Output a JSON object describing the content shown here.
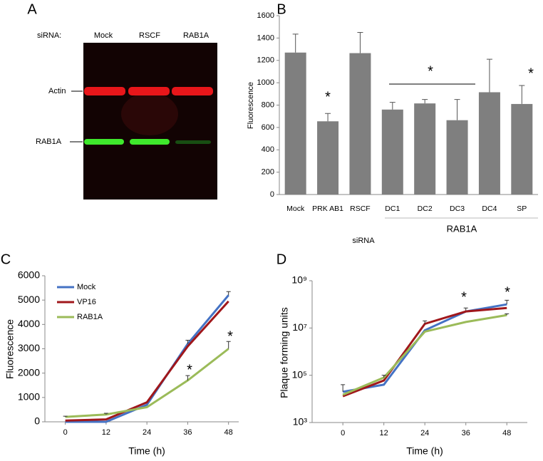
{
  "blot": {
    "panel": "A",
    "header": "siRNA:",
    "lanes": [
      "Mock",
      "RSCF",
      "RAB1A"
    ],
    "bands": [
      "Actin",
      "RAB1A"
    ]
  },
  "chart_data": [
    {
      "type": "bar",
      "panel": "B",
      "ylabel": "Fluorescence",
      "xlabel": "siRNA",
      "group_label": "RAB1A",
      "categories": [
        "Mock",
        "PRK AB1",
        "RSCF",
        "DC1",
        "DC2",
        "DC3",
        "DC4",
        "SP"
      ],
      "values": [
        1270,
        655,
        1265,
        760,
        815,
        665,
        915,
        810
      ],
      "errors": [
        165,
        70,
        185,
        65,
        35,
        185,
        295,
        165
      ],
      "color": "#7f7f7f",
      "ylim": [
        0,
        1600
      ],
      "yticks": [
        0,
        200,
        400,
        600,
        800,
        1000,
        1200,
        1400,
        1600
      ],
      "annotations": [
        "*",
        "*",
        "*"
      ]
    },
    {
      "type": "line",
      "panel": "C",
      "ylabel": "Fluorescence",
      "xlabel": "Time (h)",
      "x": [
        0,
        12,
        24,
        36,
        48
      ],
      "xlim": [
        -6,
        51
      ],
      "xticks": [
        0,
        12,
        24,
        36,
        48
      ],
      "ylim": [
        0,
        6000
      ],
      "yticks": [
        0,
        1000,
        2000,
        3000,
        4000,
        5000,
        6000
      ],
      "legend": "upper left",
      "series": [
        {
          "name": "Mock",
          "color": "#4472c4",
          "values": [
            0,
            0,
            700,
            3200,
            5200
          ],
          "errors": [
            null,
            null,
            null,
            150,
            150
          ]
        },
        {
          "name": "VP16",
          "color": "#a0171b",
          "values": [
            50,
            100,
            800,
            3100,
            4950
          ],
          "errors": [
            null,
            null,
            null,
            null,
            null
          ]
        },
        {
          "name": "RAB1A",
          "color": "#9bbb59",
          "values": [
            200,
            300,
            600,
            1700,
            3000
          ],
          "errors": [
            30,
            50,
            null,
            200,
            300
          ]
        }
      ],
      "annotations": [
        "*",
        "*"
      ]
    },
    {
      "type": "line",
      "panel": "D",
      "ylabel": "Plaque forming units",
      "xlabel": "Time (h)",
      "log_scale": true,
      "x": [
        0,
        12,
        24,
        36,
        48
      ],
      "xlim": [
        -9,
        54
      ],
      "xticks": [
        0,
        12,
        24,
        36,
        48
      ],
      "ylim": [
        1000,
        1000000000
      ],
      "yticks": [
        {
          "value": 1000,
          "label": "10³"
        },
        {
          "value": 100000,
          "label": "10⁵"
        },
        {
          "value": 10000000,
          "label": "10⁷"
        },
        {
          "value": 1000000000,
          "label": "10⁹"
        }
      ],
      "series": [
        {
          "name": "Mock",
          "color": "#4472c4",
          "values": [
            20000,
            40000,
            8000000,
            50000000,
            100000000
          ],
          "errors": [
            20000,
            null,
            null,
            20000000,
            50000000
          ]
        },
        {
          "name": "VP16",
          "color": "#a0171b",
          "values": [
            13000,
            60000,
            15000000,
            50000000,
            70000000
          ],
          "errors": [
            null,
            null,
            5000000,
            null,
            null
          ]
        },
        {
          "name": "RAB1A",
          "color": "#9bbb59",
          "values": [
            15000,
            80000,
            7000000,
            18000000,
            35000000
          ],
          "errors": [
            null,
            20000,
            null,
            null,
            5000000
          ]
        }
      ],
      "annotations": [
        "*",
        "*"
      ]
    }
  ]
}
